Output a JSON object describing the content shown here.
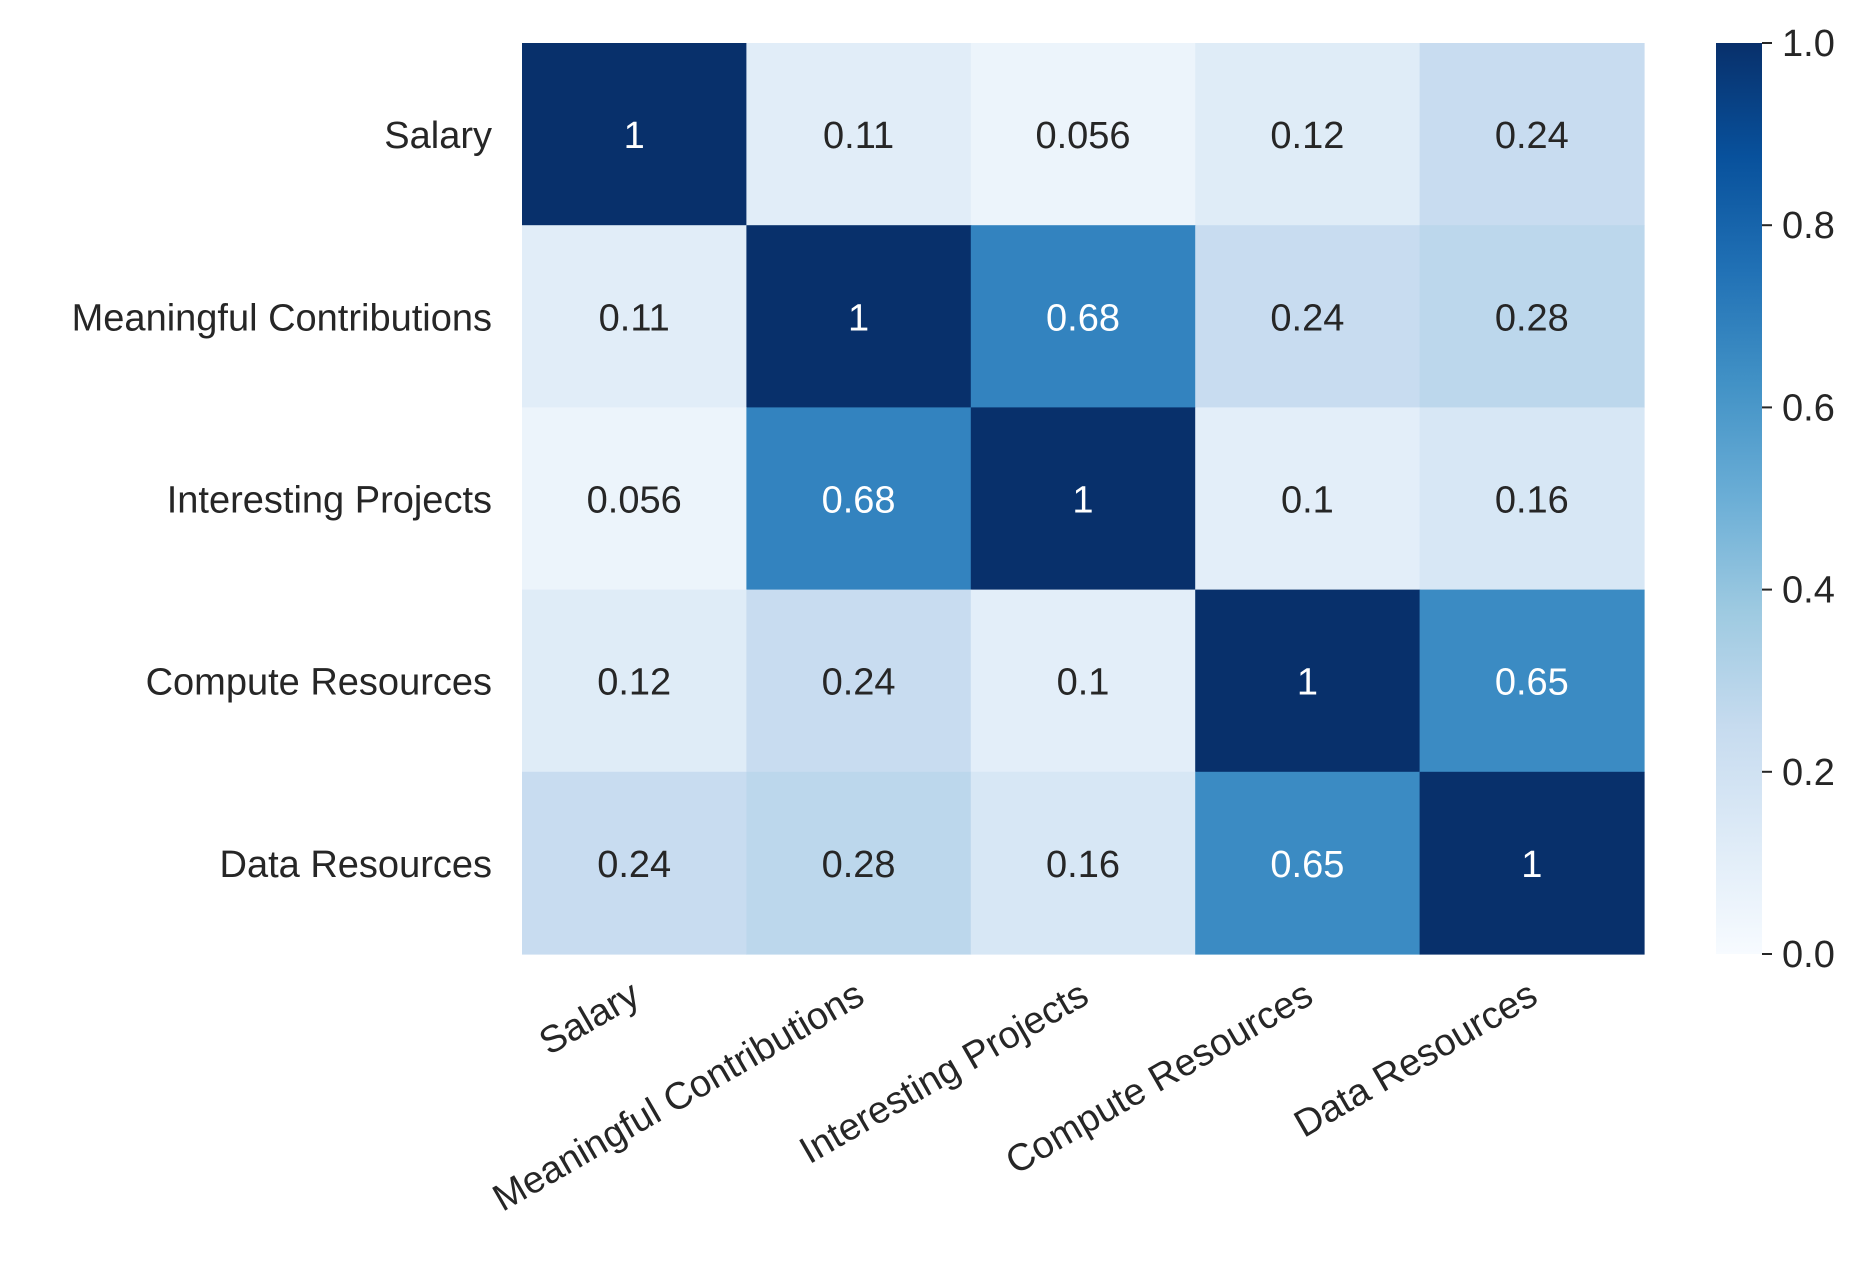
{
  "chart_data": {
    "type": "heatmap",
    "title": "",
    "xlabel": "",
    "ylabel": "",
    "x_categories": [
      "Salary",
      "Meaningful Contributions",
      "Interesting Projects",
      "Compute Resources",
      "Data Resources"
    ],
    "y_categories": [
      "Salary",
      "Meaningful Contributions",
      "Interesting Projects",
      "Compute Resources",
      "Data Resources"
    ],
    "values": [
      [
        1,
        0.11,
        0.056,
        0.12,
        0.24
      ],
      [
        0.11,
        1,
        0.68,
        0.24,
        0.28
      ],
      [
        0.056,
        0.68,
        1,
        0.1,
        0.16
      ],
      [
        0.12,
        0.24,
        0.1,
        1,
        0.65
      ],
      [
        0.24,
        0.28,
        0.16,
        0.65,
        1
      ]
    ],
    "annotations": [
      [
        "1",
        "0.11",
        "0.056",
        "0.12",
        "0.24"
      ],
      [
        "0.11",
        "1",
        "0.68",
        "0.24",
        "0.28"
      ],
      [
        "0.056",
        "0.68",
        "1",
        "0.1",
        "0.16"
      ],
      [
        "0.12",
        "0.24",
        "0.1",
        "1",
        "0.65"
      ],
      [
        "0.24",
        "0.28",
        "0.16",
        "0.65",
        "1"
      ]
    ],
    "colormap": "Blues",
    "vmin": 0.0,
    "vmax": 1.0,
    "colorbar": {
      "ticks": [
        0.0,
        0.2,
        0.4,
        0.6,
        0.8,
        1.0
      ],
      "tick_labels": [
        "0.0",
        "0.2",
        "0.4",
        "0.6",
        "0.8",
        "1.0"
      ]
    },
    "legend": "colorbar-right",
    "grid": false
  }
}
